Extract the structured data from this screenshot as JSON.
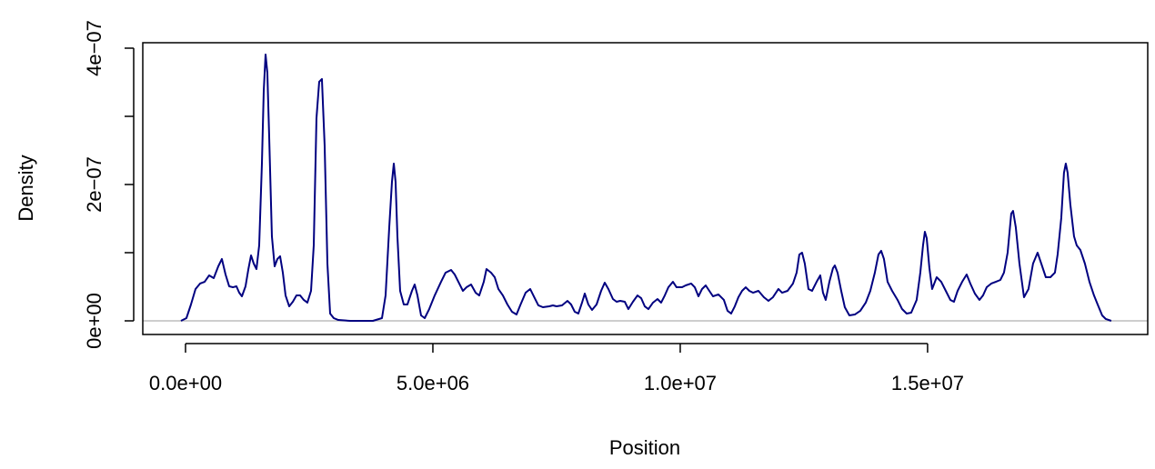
{
  "chart_data": {
    "type": "line",
    "x_label": "Position",
    "y_label": "Density",
    "xlim": [
      -864000,
      19450000
    ],
    "ylim": [
      -2e-08,
      4.08e-07
    ],
    "xticks": [
      {
        "value": 0,
        "label": "0.0e+00"
      },
      {
        "value": 5000000,
        "label": "5.0e+06"
      },
      {
        "value": 10000000,
        "label": "1.0e+07"
      },
      {
        "value": 15000000,
        "label": "1.5e+07"
      }
    ],
    "yticks": [
      {
        "value": 0,
        "label": "0e+00"
      },
      {
        "value": 2e-07,
        "label": "2e−07"
      },
      {
        "value": 4e-07,
        "label": "4e−07"
      }
    ],
    "yticks_unlabeled": [
      1e-07,
      3e-07
    ],
    "zero_line_color": "#bebebe",
    "series": [
      {
        "color": "#000080",
        "x": [
          -92000,
          18000,
          110000,
          202000,
          294000,
          386000,
          478000,
          570000,
          662000,
          735000,
          809000,
          882000,
          956000,
          1029000,
          1085000,
          1140000,
          1213000,
          1268000,
          1324000,
          1379000,
          1434000,
          1489000,
          1544000,
          1581000,
          1618000,
          1654000,
          1691000,
          1746000,
          1801000,
          1857000,
          1912000,
          1967000,
          2022000,
          2096000,
          2169000,
          2243000,
          2316000,
          2390000,
          2463000,
          2537000,
          2592000,
          2647000,
          2702000,
          2757000,
          2812000,
          2868000,
          2923000,
          2996000,
          3088000,
          3327000,
          3787000,
          3971000,
          4044000,
          4118000,
          4173000,
          4210000,
          4246000,
          4283000,
          4338000,
          4412000,
          4485000,
          4577000,
          4632000,
          4688000,
          4761000,
          4835000,
          4926000,
          5037000,
          5165000,
          5257000,
          5368000,
          5441000,
          5533000,
          5607000,
          5680000,
          5772000,
          5864000,
          5937000,
          6029000,
          6084000,
          6176000,
          6250000,
          6324000,
          6415000,
          6507000,
          6599000,
          6691000,
          6765000,
          6875000,
          6967000,
          7059000,
          7132000,
          7224000,
          7353000,
          7426000,
          7500000,
          7610000,
          7721000,
          7794000,
          7868000,
          7941000,
          8015000,
          8070000,
          8143000,
          8217000,
          8309000,
          8401000,
          8474000,
          8548000,
          8640000,
          8713000,
          8787000,
          8879000,
          8952000,
          9044000,
          9136000,
          9210000,
          9283000,
          9357000,
          9449000,
          9540000,
          9614000,
          9688000,
          9761000,
          9853000,
          9926000,
          10037000,
          10110000,
          10221000,
          10294000,
          10368000,
          10441000,
          10515000,
          10588000,
          10662000,
          10772000,
          10882000,
          10956000,
          11029000,
          11103000,
          11176000,
          11250000,
          11324000,
          11397000,
          11471000,
          11581000,
          11691000,
          11783000,
          11875000,
          11985000,
          12059000,
          12169000,
          12279000,
          12353000,
          12408000,
          12463000,
          12518000,
          12592000,
          12665000,
          12757000,
          12831000,
          12886000,
          12941000,
          13015000,
          13088000,
          13125000,
          13180000,
          13254000,
          13327000,
          13419000,
          13529000,
          13640000,
          13750000,
          13842000,
          13934000,
          14007000,
          14062000,
          14118000,
          14191000,
          14283000,
          14393000,
          14485000,
          14577000,
          14669000,
          14779000,
          14853000,
          14908000,
          14945000,
          14982000,
          15037000,
          15092000,
          15184000,
          15276000,
          15368000,
          15460000,
          15533000,
          15607000,
          15699000,
          15790000,
          15864000,
          15956000,
          16048000,
          16121000,
          16195000,
          16287000,
          16379000,
          16471000,
          16544000,
          16618000,
          16691000,
          16728000,
          16783000,
          16857000,
          16949000,
          17040000,
          17132000,
          17224000,
          17298000,
          17390000,
          17482000,
          17574000,
          17629000,
          17702000,
          17757000,
          17794000,
          17831000,
          17886000,
          17960000,
          18015000,
          18088000,
          18180000,
          18272000,
          18364000,
          18438000,
          18529000,
          18603000,
          18713000
        ],
        "values": [
          0,
          4e-09,
          2.4e-08,
          4.67e-08,
          5.47e-08,
          5.73e-08,
          6.67e-08,
          6.27e-08,
          8e-08,
          9.07e-08,
          6.8e-08,
          5.07e-08,
          4.93e-08,
          5.07e-08,
          4.13e-08,
          3.6e-08,
          5.07e-08,
          7.47e-08,
          9.6e-08,
          8.4e-08,
          7.6e-08,
          1.107e-07,
          2.307e-07,
          3.373e-07,
          3.907e-07,
          3.64e-07,
          2.707e-07,
          1.24e-07,
          8e-08,
          9.07e-08,
          9.47e-08,
          7.07e-08,
          3.73e-08,
          2.13e-08,
          2.8e-08,
          3.73e-08,
          3.73e-08,
          3.07e-08,
          2.67e-08,
          4.4e-08,
          1.107e-07,
          2.973e-07,
          3.507e-07,
          3.547e-07,
          2.573e-07,
          8.4e-08,
          1.07e-08,
          4e-09,
          1.3e-09,
          0,
          0,
          4e-09,
          3.73e-08,
          1.373e-07,
          2.04e-07,
          2.307e-07,
          2.04e-07,
          1.24e-07,
          4.4e-08,
          2.4e-08,
          2.4e-08,
          4.4e-08,
          5.33e-08,
          3.73e-08,
          8e-09,
          4e-09,
          1.73e-08,
          3.73e-08,
          5.73e-08,
          7.07e-08,
          7.47e-08,
          6.8e-08,
          5.47e-08,
          4.4e-08,
          4.93e-08,
          5.33e-08,
          4.13e-08,
          3.73e-08,
          5.73e-08,
          7.6e-08,
          7.07e-08,
          6.4e-08,
          4.67e-08,
          3.73e-08,
          2.4e-08,
          1.33e-08,
          9.3e-09,
          2.27e-08,
          4.13e-08,
          4.67e-08,
          3.33e-08,
          2.27e-08,
          2e-08,
          2.13e-08,
          2.27e-08,
          2.13e-08,
          2.27e-08,
          2.93e-08,
          2.4e-08,
          1.33e-08,
          1.07e-08,
          2.67e-08,
          4e-08,
          2.4e-08,
          1.6e-08,
          2.4e-08,
          4.4e-08,
          5.6e-08,
          4.67e-08,
          3.2e-08,
          2.8e-08,
          2.93e-08,
          2.8e-08,
          1.73e-08,
          2.8e-08,
          3.73e-08,
          3.33e-08,
          2.13e-08,
          1.73e-08,
          2.67e-08,
          3.2e-08,
          2.67e-08,
          3.73e-08,
          4.93e-08,
          5.73e-08,
          4.93e-08,
          4.93e-08,
          5.2e-08,
          5.47e-08,
          4.93e-08,
          3.6e-08,
          4.67e-08,
          5.2e-08,
          4.4e-08,
          3.6e-08,
          3.87e-08,
          3.07e-08,
          1.47e-08,
          1.07e-08,
          2.13e-08,
          3.47e-08,
          4.4e-08,
          4.93e-08,
          4.4e-08,
          4.13e-08,
          4.4e-08,
          3.47e-08,
          2.93e-08,
          3.47e-08,
          4.67e-08,
          4.13e-08,
          4.4e-08,
          5.47e-08,
          7.07e-08,
          9.73e-08,
          1e-07,
          8.4e-08,
          4.67e-08,
          4.4e-08,
          5.73e-08,
          6.67e-08,
          4.13e-08,
          3.07e-08,
          5.73e-08,
          7.73e-08,
          8.13e-08,
          7.07e-08,
          4.4e-08,
          2e-08,
          8e-09,
          9.3e-09,
          1.47e-08,
          2.67e-08,
          4.4e-08,
          7.07e-08,
          9.73e-08,
          1.027e-07,
          9.07e-08,
          5.73e-08,
          4.4e-08,
          3.07e-08,
          1.73e-08,
          1.07e-08,
          1.2e-08,
          3.07e-08,
          7.07e-08,
          1.107e-07,
          1.307e-07,
          1.213e-07,
          7.73e-08,
          4.67e-08,
          6.4e-08,
          5.73e-08,
          4.4e-08,
          3.07e-08,
          2.8e-08,
          4.4e-08,
          5.73e-08,
          6.8e-08,
          5.47e-08,
          4e-08,
          3.07e-08,
          3.73e-08,
          4.93e-08,
          5.47e-08,
          5.73e-08,
          6e-08,
          7.07e-08,
          1e-07,
          1.573e-07,
          1.613e-07,
          1.373e-07,
          8.4e-08,
          3.47e-08,
          4.67e-08,
          8.4e-08,
          1e-07,
          8.4e-08,
          6.4e-08,
          6.4e-08,
          7.07e-08,
          9.73e-08,
          1.507e-07,
          2.173e-07,
          2.307e-07,
          2.173e-07,
          1.707e-07,
          1.24e-07,
          1.107e-07,
          1.04e-07,
          8.4e-08,
          5.73e-08,
          3.73e-08,
          2.4e-08,
          8e-09,
          2.7e-09,
          0
        ]
      }
    ]
  }
}
